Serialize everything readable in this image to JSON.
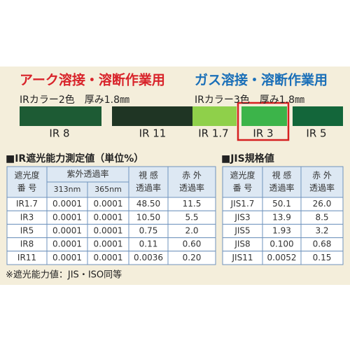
{
  "arc": {
    "title": "アーク溶接・溶断作業用",
    "subtitle": "IRカラー2色　厚み1.8㎜",
    "swatches": [
      "IR 8",
      "IR 11"
    ]
  },
  "gas": {
    "title": "ガス溶接・溶断作業用",
    "subtitle": "IRカラー3色　厚み1.8㎜",
    "swatches": [
      "IR 1.7",
      "IR 3",
      "IR 5"
    ]
  },
  "table_ir": {
    "title": "■IR遮光能力測定値（単位%）",
    "header": {
      "shade": [
        "遮光度",
        "番 号"
      ],
      "uv": "紫外透過率",
      "uv_cols": [
        "313nm",
        "365nm"
      ],
      "visible": [
        "視 感",
        "透過率"
      ],
      "infrared": [
        "赤 外",
        "透過率"
      ]
    },
    "rows": [
      [
        "IR1.7",
        "0.0001",
        "0.0001",
        "48.50",
        "11.5"
      ],
      [
        "IR3",
        "0.0001",
        "0.0001",
        "10.50",
        "5.5"
      ],
      [
        "IR5",
        "0.0001",
        "0.0001",
        "0.75",
        "2.0"
      ],
      [
        "IR8",
        "0.0001",
        "0.0001",
        "0.11",
        "0.60"
      ],
      [
        "IR11",
        "0.0001",
        "0.0001",
        "0.0036",
        "0.20"
      ]
    ]
  },
  "table_jis": {
    "title": "■JIS規格値",
    "header": [
      [
        "遮光度",
        "番 号"
      ],
      [
        "視 感",
        "透過率"
      ],
      [
        "赤 外",
        "透過率"
      ]
    ],
    "rows": [
      [
        "JIS1.7",
        "50.1",
        "26.0"
      ],
      [
        "JIS3",
        "13.9",
        "8.5"
      ],
      [
        "JIS5",
        "1.93",
        "3.2"
      ],
      [
        "JIS8",
        "0.100",
        "0.68"
      ],
      [
        "JIS11",
        "0.0052",
        "0.15"
      ]
    ]
  },
  "footnote": "※遮光能力値：JIS・ISO同等"
}
